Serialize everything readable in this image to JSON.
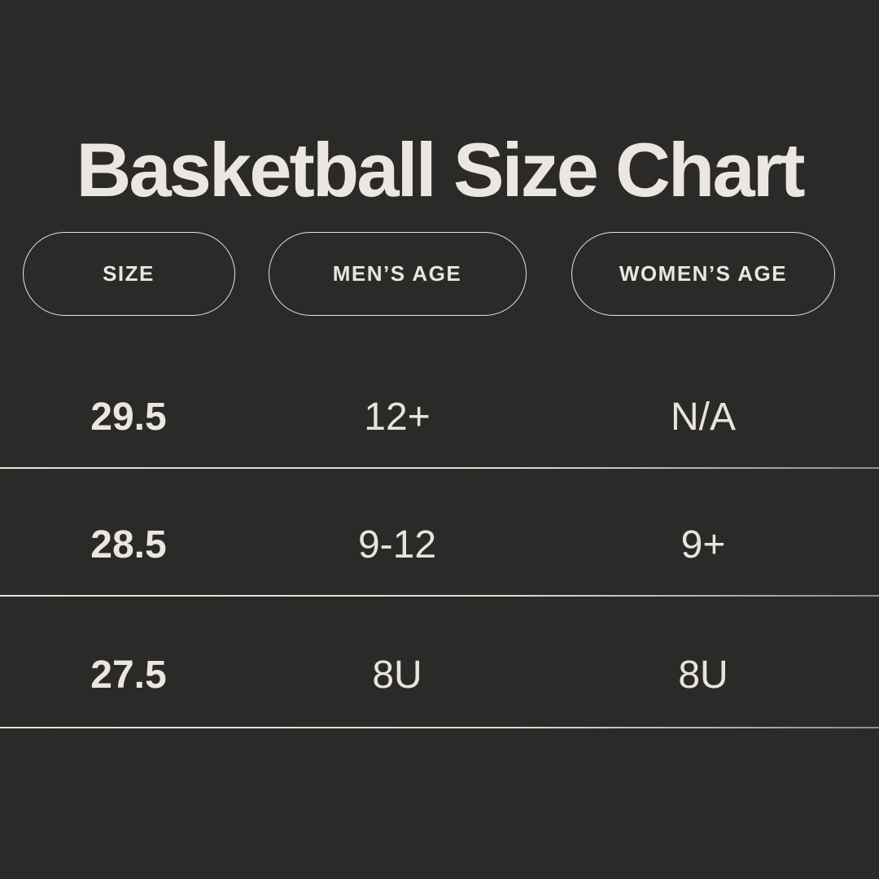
{
  "title": "Basketball Size Chart",
  "colors": {
    "background": "#2b2a28",
    "text": "#eae7e0",
    "pill_border": "#e8e5df",
    "divider": "#dfdcd6"
  },
  "table": {
    "columns": [
      {
        "id": "size",
        "label": "SIZE"
      },
      {
        "id": "mens-age",
        "label": "MEN’S AGE"
      },
      {
        "id": "womens-age",
        "label": "WOMEN’S AGE"
      }
    ],
    "rows": [
      {
        "size": "29.5",
        "mens_age": "12+",
        "womens_age": "N/A"
      },
      {
        "size": "28.5",
        "mens_age": "9-12",
        "womens_age": "9+"
      },
      {
        "size": "27.5",
        "mens_age": "8U",
        "womens_age": "8U"
      }
    ]
  },
  "chart_data": {
    "type": "table",
    "title": "Basketball Size Chart",
    "columns": [
      "SIZE",
      "MEN’S AGE",
      "WOMEN’S AGE"
    ],
    "rows": [
      [
        "29.5",
        "12+",
        "N/A"
      ],
      [
        "28.5",
        "9-12",
        "9+"
      ],
      [
        "27.5",
        "8U",
        "8U"
      ]
    ],
    "layout": "dark infographic table, pill-shaped column headers, full-width row dividers"
  }
}
